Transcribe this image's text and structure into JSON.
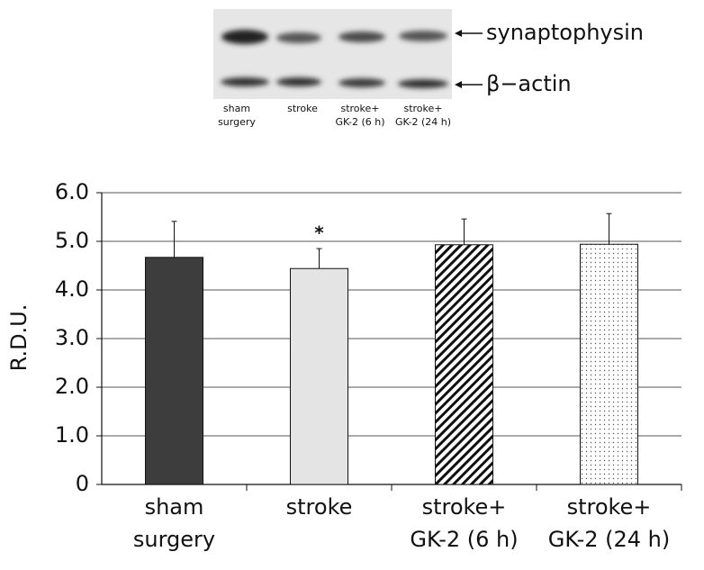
{
  "blot": {
    "bands": [
      "synaptophysin",
      "β−actin"
    ],
    "lanes": [
      [
        "sham",
        "surgery"
      ],
      [
        "stroke"
      ],
      [
        "stroke+",
        "GK-2 (6 h)"
      ],
      [
        "stroke+",
        "GK-2 (24 h)"
      ]
    ]
  },
  "chart_data": {
    "type": "bar",
    "ylabel": "R.D.U.",
    "categories": [
      [
        "sham",
        "surgery"
      ],
      [
        "stroke"
      ],
      [
        "stroke+",
        "GK-2 (6 h)"
      ],
      [
        "stroke+",
        "GK-2 (24 h)"
      ]
    ],
    "values": [
      4.67,
      4.44,
      4.93,
      4.94
    ],
    "errors": [
      0.74,
      0.41,
      0.53,
      0.63
    ],
    "colors": [
      "#3d3d3d",
      "#e4e4e4",
      "diagonal-hatch",
      "dots"
    ],
    "annotations": [
      {
        "text": "*",
        "index": 1
      }
    ],
    "ylim": [
      0,
      6
    ],
    "yticks": [
      0,
      {
        "value": 1,
        "label": "1.0"
      },
      {
        "value": 2,
        "label": "2.0"
      },
      {
        "value": 3,
        "label": "3.0"
      },
      {
        "value": 4,
        "label": "4.0"
      },
      {
        "value": 5,
        "label": "5.0"
      },
      {
        "value": 6,
        "label": "6.0"
      }
    ],
    "grid": true
  }
}
